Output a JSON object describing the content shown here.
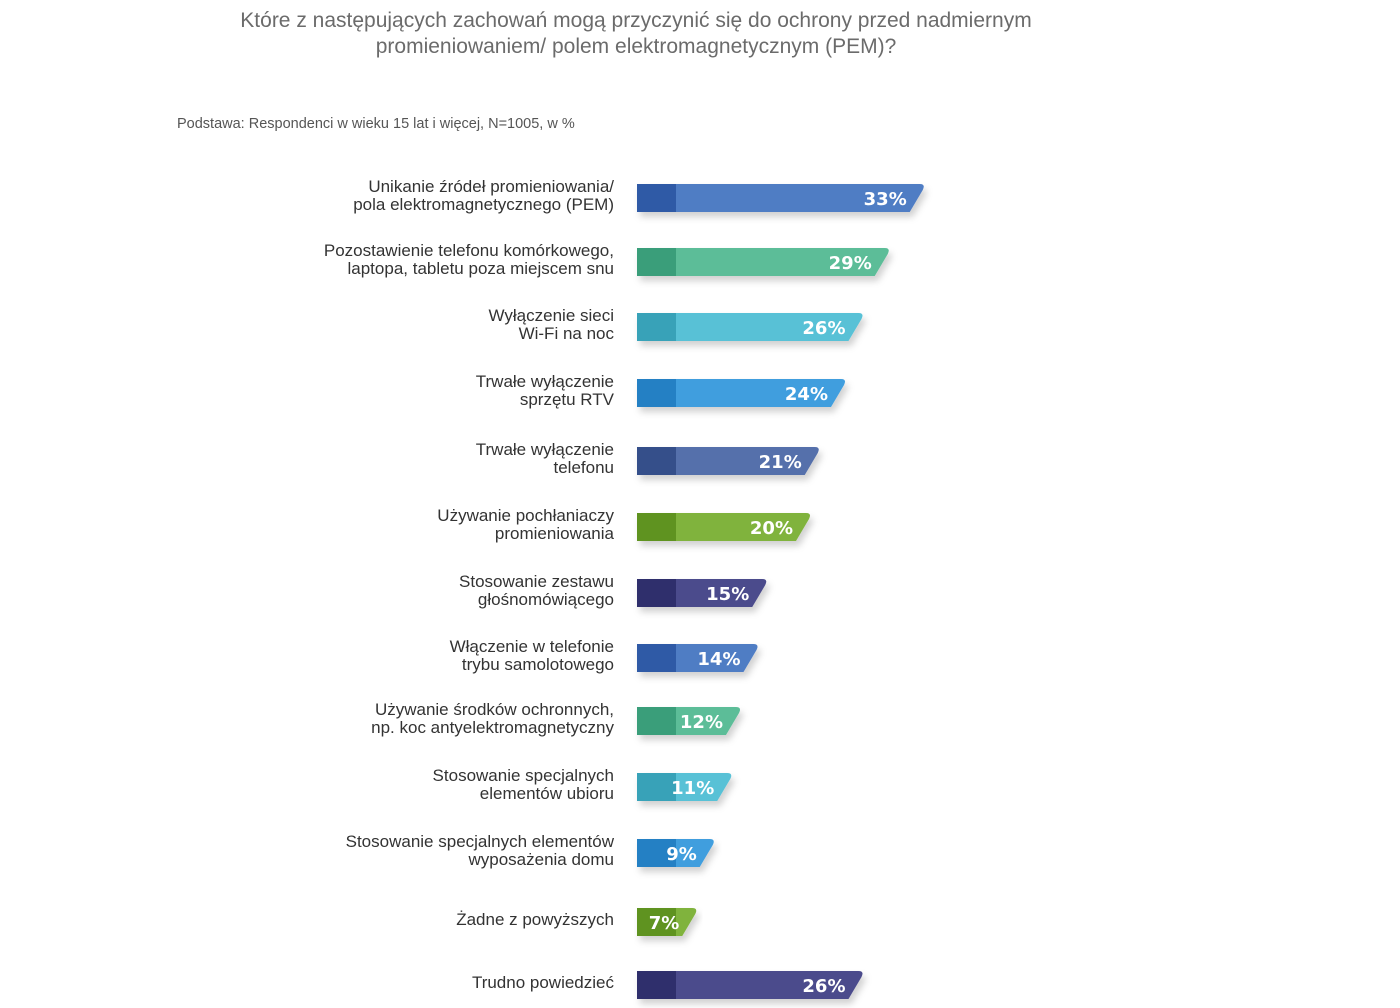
{
  "chart_data": {
    "type": "bar",
    "orientation": "horizontal",
    "title": "Które z następujących zachowań mogą przyczynić się do ochrony przed nadmiernym\npromieniowaniem/ polem elektromagnetycznym (PEM)?",
    "subtitle": "Podstawa: Respondenci w wieku 15 lat i więcej, N=1005, w %",
    "categories": [
      "Unikanie źródeł promieniowania/\npola elektromagnetycznego (PEM)",
      "Pozostawienie telefonu komórkowego,\nlaptopa, tabletu poza miejscem snu",
      "Wyłączenie sieci\nWi-Fi na noc",
      "Trwałe wyłączenie\nsprzętu RTV",
      "Trwałe wyłączenie\ntelefonu",
      "Używanie pochłaniaczy\npromieniowania",
      "Stosowanie zestawu\ngłośnomówiącego",
      "Włączenie w telefonie\ntrybu samolotowego",
      "Używanie środków ochronnych,\nnp. koc antyelektromagnetyczny",
      "Stosowanie specjalnych\nelementów ubioru",
      "Stosowanie specjalnych elementów\nwyposażenia domu",
      "Żadne z powyższych",
      "Trudno powiedzieć"
    ],
    "values": [
      33,
      29,
      26,
      24,
      21,
      20,
      15,
      14,
      12,
      11,
      9,
      7,
      26
    ],
    "value_labels": [
      "33%",
      "29%",
      "26%",
      "24%",
      "21%",
      "20%",
      "15%",
      "14%",
      "12%",
      "11%",
      "9%",
      "7%",
      "26%"
    ],
    "colors": [
      "#4f7dc4",
      "#5bbd98",
      "#58c1d6",
      "#3f9ede",
      "#5470ab",
      "#80b33c",
      "#4b4b8c",
      "#4f7dc4",
      "#5bbd98",
      "#58c1d6",
      "#3f9ede",
      "#80b33c",
      "#4b4b8c"
    ],
    "dark_colors": [
      "#2f5aa6",
      "#3a9e7a",
      "#38a2b8",
      "#2480c4",
      "#354f8a",
      "#5f9320",
      "#2f2f6c",
      "#2f5aa6",
      "#3a9e7a",
      "#38a2b8",
      "#2480c4",
      "#5f9320",
      "#2f2f6c"
    ],
    "unit": "%",
    "grid": false,
    "legend": "none"
  }
}
